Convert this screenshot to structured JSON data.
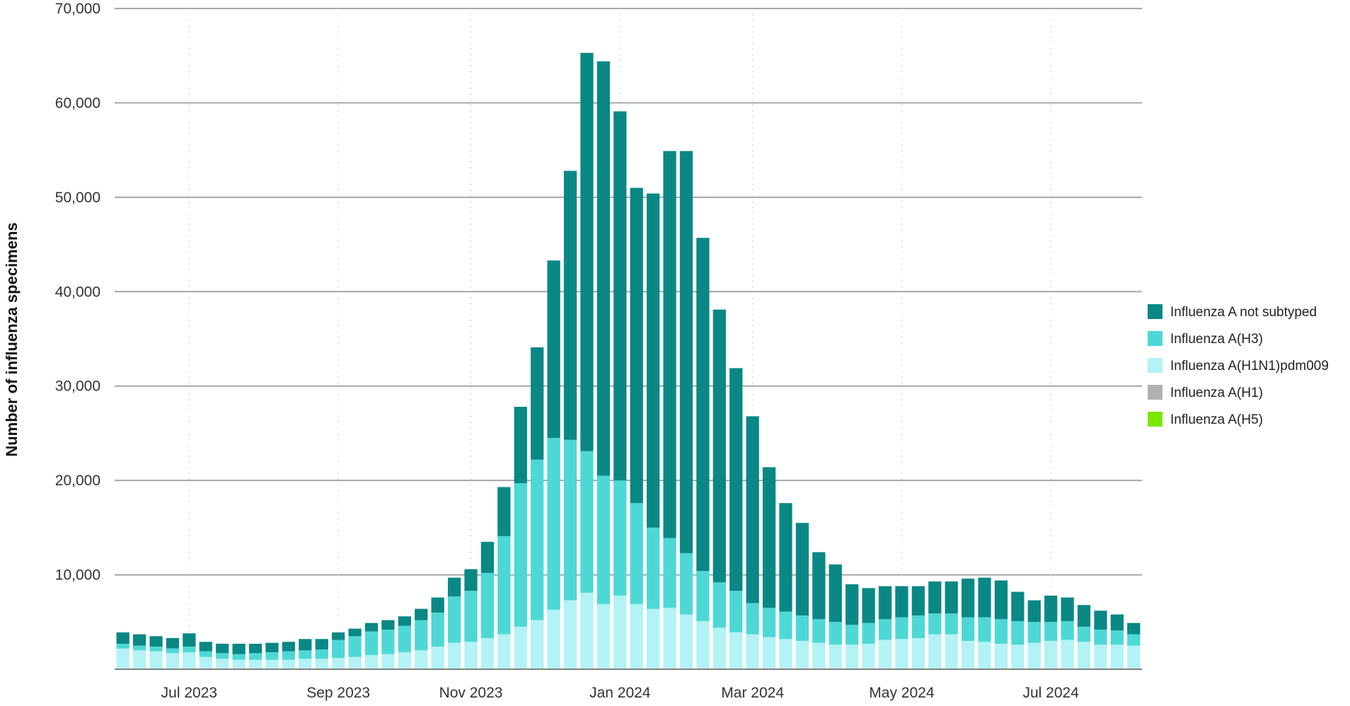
{
  "chart_data": {
    "type": "bar",
    "stacked": true,
    "ylabel": "Number of influenza specimens",
    "xlabel": "",
    "ylim": [
      0,
      70000
    ],
    "yticks": [
      10000,
      20000,
      30000,
      40000,
      50000,
      60000,
      70000
    ],
    "ytick_labels": [
      "10,000",
      "20,000",
      "30,000",
      "40,000",
      "50,000",
      "60,000",
      "70,000"
    ],
    "grid": "horizontal",
    "legend_position": "right",
    "x_tick_labels": [
      {
        "label": "Jul 2023",
        "index": 4
      },
      {
        "label": "Sep 2023",
        "index": 13
      },
      {
        "label": "Nov 2023",
        "index": 21
      },
      {
        "label": "Jan 2024",
        "index": 30
      },
      {
        "label": "Mar 2024",
        "index": 38
      },
      {
        "label": "May 2024",
        "index": 47
      },
      {
        "label": "Jul 2024",
        "index": 56
      }
    ],
    "series": [
      {
        "name": "Influenza A(H1N1)pdm009",
        "color": "#b3f2f5",
        "values": [
          2200,
          2000,
          1900,
          1700,
          1800,
          1300,
          1100,
          1000,
          1000,
          1000,
          1000,
          1100,
          1100,
          1200,
          1300,
          1500,
          1600,
          1800,
          2000,
          2400,
          2800,
          2900,
          3300,
          3700,
          4500,
          5200,
          6300,
          7300,
          8100,
          6900,
          7800,
          6900,
          6400,
          6500,
          5800,
          5100,
          4400,
          3900,
          3700,
          3400,
          3200,
          3000,
          2800,
          2600,
          2600,
          2700,
          3100,
          3200,
          3300,
          3700,
          3700,
          3000,
          2900,
          2700,
          2600,
          2800,
          3000,
          3100,
          2900,
          2600,
          2600,
          2500
        ]
      },
      {
        "name": "Influenza A(H3)",
        "color": "#4dd8d6",
        "values": [
          500,
          500,
          500,
          500,
          600,
          600,
          600,
          600,
          700,
          800,
          900,
          900,
          1000,
          1900,
          2200,
          2500,
          2600,
          2800,
          3200,
          3600,
          4900,
          5400,
          6900,
          10400,
          15200,
          17000,
          18200,
          17000,
          15000,
          13600,
          12200,
          10700,
          8600,
          7400,
          6500,
          5300,
          4800,
          4400,
          3300,
          3100,
          2900,
          2700,
          2500,
          2400,
          2100,
          2200,
          2200,
          2300,
          2400,
          2200,
          2200,
          2500,
          2600,
          2600,
          2500,
          2200,
          2000,
          2000,
          1600,
          1600,
          1500,
          1200
        ]
      },
      {
        "name": "Influenza A not subtyped",
        "color": "#098885",
        "values": [
          1200,
          1200,
          1100,
          1100,
          1400,
          1000,
          1000,
          1100,
          1000,
          1000,
          1000,
          1200,
          1100,
          800,
          800,
          900,
          1000,
          1000,
          1200,
          1600,
          2000,
          2300,
          3300,
          5200,
          8100,
          11900,
          18800,
          28500,
          42200,
          43900,
          39100,
          33400,
          35400,
          41000,
          42600,
          35300,
          28900,
          23600,
          19800,
          14900,
          11500,
          9800,
          7100,
          6100,
          4300,
          3700,
          3500,
          3300,
          3100,
          3400,
          3400,
          4100,
          4200,
          4100,
          3100,
          2300,
          2800,
          2500,
          2300,
          2000,
          1700,
          1200
        ]
      },
      {
        "name": "Influenza A(H1)",
        "color": "#b0b0b0",
        "values": [
          0,
          0,
          0,
          0,
          0,
          0,
          0,
          0,
          0,
          0,
          0,
          0,
          0,
          0,
          0,
          0,
          0,
          0,
          0,
          0,
          0,
          0,
          0,
          0,
          0,
          0,
          0,
          0,
          0,
          0,
          0,
          0,
          0,
          0,
          0,
          0,
          0,
          0,
          0,
          0,
          0,
          0,
          0,
          0,
          0,
          0,
          0,
          0,
          0,
          0,
          0,
          0,
          0,
          0,
          0,
          0,
          0,
          0,
          0,
          0,
          0,
          0
        ]
      },
      {
        "name": "Influenza A(H5)",
        "color": "#7de600",
        "values": [
          0,
          0,
          0,
          0,
          0,
          0,
          0,
          0,
          0,
          0,
          0,
          0,
          0,
          0,
          0,
          0,
          0,
          0,
          0,
          0,
          0,
          0,
          0,
          0,
          0,
          0,
          0,
          0,
          0,
          0,
          0,
          0,
          0,
          0,
          0,
          0,
          0,
          0,
          0,
          0,
          0,
          0,
          0,
          0,
          0,
          0,
          0,
          0,
          0,
          0,
          0,
          0,
          0,
          0,
          0,
          0,
          0,
          0,
          0,
          0,
          0,
          0
        ]
      }
    ],
    "legend": [
      {
        "label": "Influenza A not subtyped",
        "color": "#098885"
      },
      {
        "label": "Influenza A(H3)",
        "color": "#4dd8d6"
      },
      {
        "label": "Influenza A(H1N1)pdm009",
        "color": "#b3f2f5"
      },
      {
        "label": "Influenza A(H1)",
        "color": "#b0b0b0"
      },
      {
        "label": "Influenza A(H5)",
        "color": "#7de600"
      }
    ]
  }
}
